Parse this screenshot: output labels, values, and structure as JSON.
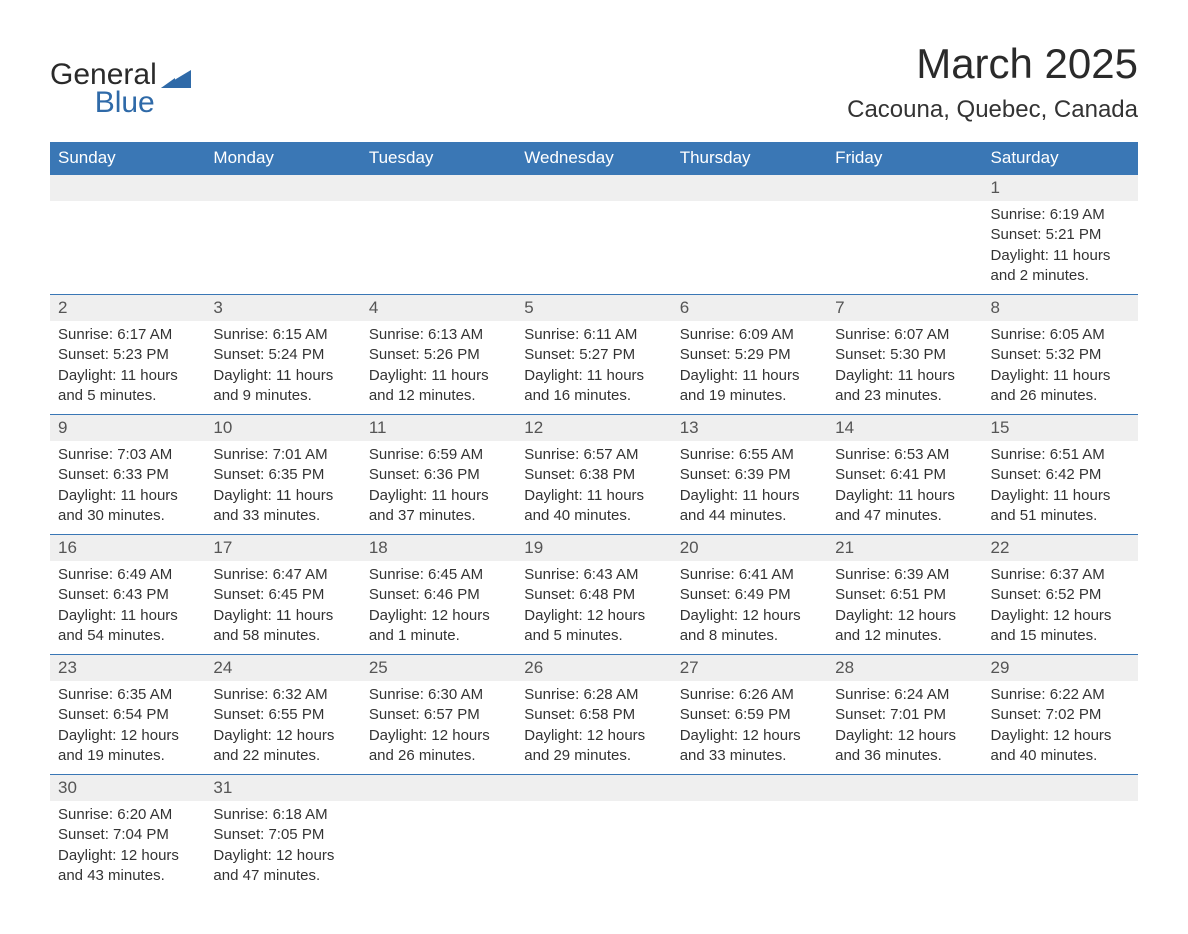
{
  "brand": {
    "general": "General",
    "blue": "Blue"
  },
  "title": "March 2025",
  "location": "Cacouna, Quebec, Canada",
  "colors": {
    "header_bg": "#3a77b5",
    "header_text": "#ffffff",
    "daynum_bg": "#efefef",
    "border": "#3a77b5",
    "text": "#333333",
    "logo_blue": "#2f6aa8"
  },
  "weekdays": [
    "Sunday",
    "Monday",
    "Tuesday",
    "Wednesday",
    "Thursday",
    "Friday",
    "Saturday"
  ],
  "weeks": [
    {
      "days": [
        null,
        null,
        null,
        null,
        null,
        null,
        {
          "n": "1",
          "sunrise": "Sunrise: 6:19 AM",
          "sunset": "Sunset: 5:21 PM",
          "daylight1": "Daylight: 11 hours",
          "daylight2": "and 2 minutes."
        }
      ]
    },
    {
      "days": [
        {
          "n": "2",
          "sunrise": "Sunrise: 6:17 AM",
          "sunset": "Sunset: 5:23 PM",
          "daylight1": "Daylight: 11 hours",
          "daylight2": "and 5 minutes."
        },
        {
          "n": "3",
          "sunrise": "Sunrise: 6:15 AM",
          "sunset": "Sunset: 5:24 PM",
          "daylight1": "Daylight: 11 hours",
          "daylight2": "and 9 minutes."
        },
        {
          "n": "4",
          "sunrise": "Sunrise: 6:13 AM",
          "sunset": "Sunset: 5:26 PM",
          "daylight1": "Daylight: 11 hours",
          "daylight2": "and 12 minutes."
        },
        {
          "n": "5",
          "sunrise": "Sunrise: 6:11 AM",
          "sunset": "Sunset: 5:27 PM",
          "daylight1": "Daylight: 11 hours",
          "daylight2": "and 16 minutes."
        },
        {
          "n": "6",
          "sunrise": "Sunrise: 6:09 AM",
          "sunset": "Sunset: 5:29 PM",
          "daylight1": "Daylight: 11 hours",
          "daylight2": "and 19 minutes."
        },
        {
          "n": "7",
          "sunrise": "Sunrise: 6:07 AM",
          "sunset": "Sunset: 5:30 PM",
          "daylight1": "Daylight: 11 hours",
          "daylight2": "and 23 minutes."
        },
        {
          "n": "8",
          "sunrise": "Sunrise: 6:05 AM",
          "sunset": "Sunset: 5:32 PM",
          "daylight1": "Daylight: 11 hours",
          "daylight2": "and 26 minutes."
        }
      ]
    },
    {
      "days": [
        {
          "n": "9",
          "sunrise": "Sunrise: 7:03 AM",
          "sunset": "Sunset: 6:33 PM",
          "daylight1": "Daylight: 11 hours",
          "daylight2": "and 30 minutes."
        },
        {
          "n": "10",
          "sunrise": "Sunrise: 7:01 AM",
          "sunset": "Sunset: 6:35 PM",
          "daylight1": "Daylight: 11 hours",
          "daylight2": "and 33 minutes."
        },
        {
          "n": "11",
          "sunrise": "Sunrise: 6:59 AM",
          "sunset": "Sunset: 6:36 PM",
          "daylight1": "Daylight: 11 hours",
          "daylight2": "and 37 minutes."
        },
        {
          "n": "12",
          "sunrise": "Sunrise: 6:57 AM",
          "sunset": "Sunset: 6:38 PM",
          "daylight1": "Daylight: 11 hours",
          "daylight2": "and 40 minutes."
        },
        {
          "n": "13",
          "sunrise": "Sunrise: 6:55 AM",
          "sunset": "Sunset: 6:39 PM",
          "daylight1": "Daylight: 11 hours",
          "daylight2": "and 44 minutes."
        },
        {
          "n": "14",
          "sunrise": "Sunrise: 6:53 AM",
          "sunset": "Sunset: 6:41 PM",
          "daylight1": "Daylight: 11 hours",
          "daylight2": "and 47 minutes."
        },
        {
          "n": "15",
          "sunrise": "Sunrise: 6:51 AM",
          "sunset": "Sunset: 6:42 PM",
          "daylight1": "Daylight: 11 hours",
          "daylight2": "and 51 minutes."
        }
      ]
    },
    {
      "days": [
        {
          "n": "16",
          "sunrise": "Sunrise: 6:49 AM",
          "sunset": "Sunset: 6:43 PM",
          "daylight1": "Daylight: 11 hours",
          "daylight2": "and 54 minutes."
        },
        {
          "n": "17",
          "sunrise": "Sunrise: 6:47 AM",
          "sunset": "Sunset: 6:45 PM",
          "daylight1": "Daylight: 11 hours",
          "daylight2": "and 58 minutes."
        },
        {
          "n": "18",
          "sunrise": "Sunrise: 6:45 AM",
          "sunset": "Sunset: 6:46 PM",
          "daylight1": "Daylight: 12 hours",
          "daylight2": "and 1 minute."
        },
        {
          "n": "19",
          "sunrise": "Sunrise: 6:43 AM",
          "sunset": "Sunset: 6:48 PM",
          "daylight1": "Daylight: 12 hours",
          "daylight2": "and 5 minutes."
        },
        {
          "n": "20",
          "sunrise": "Sunrise: 6:41 AM",
          "sunset": "Sunset: 6:49 PM",
          "daylight1": "Daylight: 12 hours",
          "daylight2": "and 8 minutes."
        },
        {
          "n": "21",
          "sunrise": "Sunrise: 6:39 AM",
          "sunset": "Sunset: 6:51 PM",
          "daylight1": "Daylight: 12 hours",
          "daylight2": "and 12 minutes."
        },
        {
          "n": "22",
          "sunrise": "Sunrise: 6:37 AM",
          "sunset": "Sunset: 6:52 PM",
          "daylight1": "Daylight: 12 hours",
          "daylight2": "and 15 minutes."
        }
      ]
    },
    {
      "days": [
        {
          "n": "23",
          "sunrise": "Sunrise: 6:35 AM",
          "sunset": "Sunset: 6:54 PM",
          "daylight1": "Daylight: 12 hours",
          "daylight2": "and 19 minutes."
        },
        {
          "n": "24",
          "sunrise": "Sunrise: 6:32 AM",
          "sunset": "Sunset: 6:55 PM",
          "daylight1": "Daylight: 12 hours",
          "daylight2": "and 22 minutes."
        },
        {
          "n": "25",
          "sunrise": "Sunrise: 6:30 AM",
          "sunset": "Sunset: 6:57 PM",
          "daylight1": "Daylight: 12 hours",
          "daylight2": "and 26 minutes."
        },
        {
          "n": "26",
          "sunrise": "Sunrise: 6:28 AM",
          "sunset": "Sunset: 6:58 PM",
          "daylight1": "Daylight: 12 hours",
          "daylight2": "and 29 minutes."
        },
        {
          "n": "27",
          "sunrise": "Sunrise: 6:26 AM",
          "sunset": "Sunset: 6:59 PM",
          "daylight1": "Daylight: 12 hours",
          "daylight2": "and 33 minutes."
        },
        {
          "n": "28",
          "sunrise": "Sunrise: 6:24 AM",
          "sunset": "Sunset: 7:01 PM",
          "daylight1": "Daylight: 12 hours",
          "daylight2": "and 36 minutes."
        },
        {
          "n": "29",
          "sunrise": "Sunrise: 6:22 AM",
          "sunset": "Sunset: 7:02 PM",
          "daylight1": "Daylight: 12 hours",
          "daylight2": "and 40 minutes."
        }
      ]
    },
    {
      "days": [
        {
          "n": "30",
          "sunrise": "Sunrise: 6:20 AM",
          "sunset": "Sunset: 7:04 PM",
          "daylight1": "Daylight: 12 hours",
          "daylight2": "and 43 minutes."
        },
        {
          "n": "31",
          "sunrise": "Sunrise: 6:18 AM",
          "sunset": "Sunset: 7:05 PM",
          "daylight1": "Daylight: 12 hours",
          "daylight2": "and 47 minutes."
        },
        null,
        null,
        null,
        null,
        null
      ]
    }
  ]
}
